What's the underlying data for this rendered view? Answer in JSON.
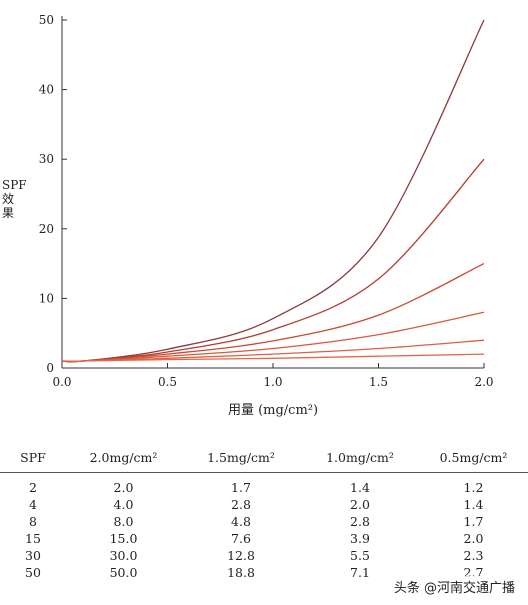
{
  "chart_data": {
    "type": "line",
    "ylabel": "SPF效果",
    "xlabel": "用量 (mg/cm²)",
    "xlim": [
      0.0,
      2.0
    ],
    "ylim": [
      0,
      50
    ],
    "x_ticks": [
      "0.0",
      "0.5",
      "1.0",
      "1.5",
      "2.0"
    ],
    "y_ticks": [
      "0",
      "10",
      "20",
      "30",
      "40",
      "50"
    ],
    "grid": false,
    "colors": [
      "#8b3a3a",
      "#b43c2f",
      "#c94a32",
      "#d65a3c",
      "#dd6043",
      "#e4674b"
    ],
    "series": [
      {
        "spf": 50,
        "x": [
          0.0,
          0.1,
          0.5,
          1.0,
          1.5,
          2.0
        ],
        "values": [
          1.0,
          1.0,
          2.7,
          7.1,
          18.8,
          50.0
        ]
      },
      {
        "spf": 30,
        "x": [
          0.0,
          0.1,
          0.5,
          1.0,
          1.5,
          2.0
        ],
        "values": [
          1.0,
          1.0,
          2.3,
          5.5,
          12.8,
          30.0
        ]
      },
      {
        "spf": 15,
        "x": [
          0.0,
          0.1,
          0.5,
          1.0,
          1.5,
          2.0
        ],
        "values": [
          1.0,
          1.0,
          2.0,
          3.9,
          7.6,
          15.0
        ]
      },
      {
        "spf": 8,
        "x": [
          0.0,
          0.1,
          0.5,
          1.0,
          1.5,
          2.0
        ],
        "values": [
          1.0,
          1.0,
          1.7,
          2.8,
          4.8,
          8.0
        ]
      },
      {
        "spf": 4,
        "x": [
          0.0,
          0.1,
          0.5,
          1.0,
          1.5,
          2.0
        ],
        "values": [
          1.0,
          1.0,
          1.4,
          2.0,
          2.8,
          4.0
        ]
      },
      {
        "spf": 2,
        "x": [
          0.0,
          0.1,
          0.5,
          1.0,
          1.5,
          2.0
        ],
        "values": [
          1.0,
          1.0,
          1.2,
          1.4,
          1.7,
          2.0
        ]
      }
    ]
  },
  "table": {
    "headers": [
      "SPF",
      "2.0mg/cm²",
      "1.5mg/cm²",
      "1.0mg/cm²",
      "0.5mg/cm²"
    ],
    "rows": [
      [
        "2",
        "2.0",
        "1.7",
        "1.4",
        "1.2"
      ],
      [
        "4",
        "4.0",
        "2.8",
        "2.0",
        "1.4"
      ],
      [
        "8",
        "8.0",
        "4.8",
        "2.8",
        "1.7"
      ],
      [
        "15",
        "15.0",
        "7.6",
        "3.9",
        "2.0"
      ],
      [
        "30",
        "30.0",
        "12.8",
        "5.5",
        "2.3"
      ],
      [
        "50",
        "50.0",
        "18.8",
        "7.1",
        "2.7"
      ]
    ]
  },
  "watermark": "头条 @河南交通广播"
}
